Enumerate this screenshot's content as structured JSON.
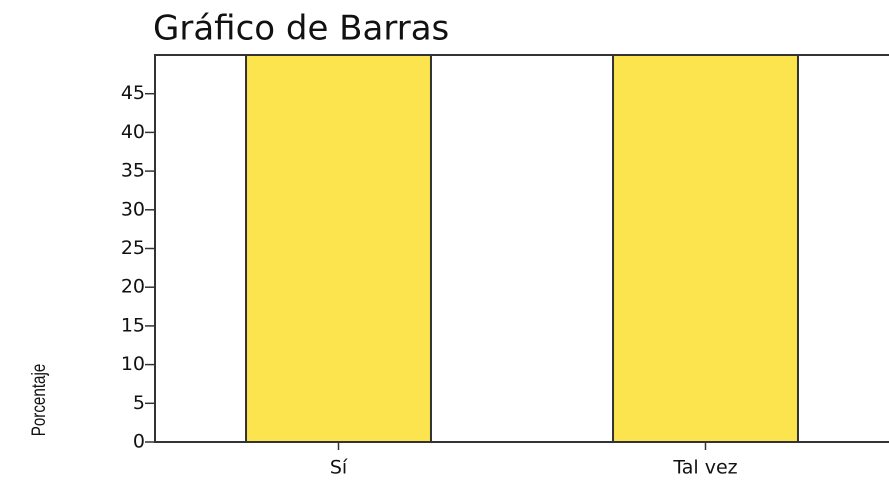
{
  "chart_data": {
    "type": "bar",
    "title": "Gráfico de Barras",
    "y_label": "Porcentaje",
    "categories": [
      "Sí",
      "Tal vez"
    ],
    "values": [
      50,
      50
    ],
    "color": "#fbe44d",
    "ylim": [
      0,
      50
    ],
    "yticks": [
      0,
      5,
      10,
      15,
      20,
      25,
      30,
      35,
      40,
      45
    ],
    "grid": false
  }
}
